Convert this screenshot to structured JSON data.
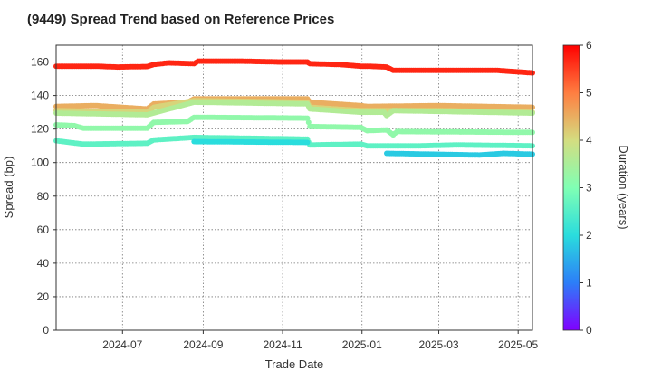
{
  "chart_data": {
    "type": "scatter",
    "title": "(9449)   Spread Trend based on Reference Prices",
    "xlabel": "Trade Date",
    "ylabel": "Spread (bp)",
    "x_range": [
      "2024-05-11",
      "2025-05-12"
    ],
    "ylim": [
      0,
      170
    ],
    "x_ticks": [
      {
        "date": "2024-07-01",
        "label": "2024-07"
      },
      {
        "date": "2024-09-01",
        "label": "2024-09"
      },
      {
        "date": "2024-11-01",
        "label": "2024-11"
      },
      {
        "date": "2025-01-01",
        "label": "2025-01"
      },
      {
        "date": "2025-03-01",
        "label": "2025-03"
      },
      {
        "date": "2025-05-01",
        "label": "2025-05"
      }
    ],
    "y_ticks": [
      0,
      20,
      40,
      60,
      80,
      100,
      120,
      140,
      160
    ],
    "grid": true,
    "colorbar": {
      "label": "Duration (years)",
      "range": [
        0,
        6
      ],
      "ticks": [
        0,
        1,
        2,
        3,
        4,
        5,
        6
      ],
      "colormap": "rainbow"
    },
    "series": [
      {
        "duration": 5.7,
        "points": [
          [
            "2024-05-11",
            157.5
          ],
          [
            "2024-06-10",
            157.5
          ],
          [
            "2024-06-27",
            157
          ],
          [
            "2024-07-20",
            157.3
          ],
          [
            "2024-07-25",
            158.5
          ],
          [
            "2024-08-05",
            159.5
          ],
          [
            "2024-08-25",
            159
          ],
          [
            "2024-08-28",
            160.5
          ],
          [
            "2024-09-30",
            160.5
          ],
          [
            "2024-10-31",
            160
          ],
          [
            "2024-11-20",
            160
          ],
          [
            "2024-11-22",
            159
          ],
          [
            "2024-12-15",
            158.5
          ],
          [
            "2024-12-31",
            157.5
          ],
          [
            "2025-01-05",
            157.5
          ],
          [
            "2025-01-20",
            157
          ],
          [
            "2025-01-25",
            155
          ],
          [
            "2025-03-15",
            155
          ],
          [
            "2025-04-15",
            155
          ],
          [
            "2025-05-12",
            153.5
          ]
        ]
      },
      {
        "duration": 4.5,
        "points": [
          [
            "2024-05-11",
            133.5
          ],
          [
            "2024-06-10",
            134
          ],
          [
            "2024-07-20",
            132
          ],
          [
            "2024-07-25",
            135
          ],
          [
            "2024-08-20",
            136
          ],
          [
            "2024-08-25",
            138
          ],
          [
            "2024-11-20",
            138
          ],
          [
            "2024-11-22",
            136
          ],
          [
            "2024-12-31",
            134
          ],
          [
            "2025-01-05",
            133.5
          ],
          [
            "2025-03-01",
            134
          ],
          [
            "2025-05-12",
            133
          ]
        ]
      },
      {
        "duration": 4.1,
        "points": [
          [
            "2024-05-11",
            131
          ],
          [
            "2024-07-20",
            130
          ],
          [
            "2024-07-25",
            133
          ],
          [
            "2024-08-25",
            137
          ],
          [
            "2024-11-20",
            136
          ],
          [
            "2024-11-22",
            133
          ],
          [
            "2024-12-31",
            131
          ],
          [
            "2025-01-05",
            131
          ],
          [
            "2025-03-01",
            131
          ],
          [
            "2025-05-12",
            130
          ]
        ]
      },
      {
        "duration": 3.6,
        "points": [
          [
            "2024-05-11",
            129.5
          ],
          [
            "2024-07-20",
            128.5
          ],
          [
            "2024-08-25",
            136
          ],
          [
            "2024-11-20",
            135
          ],
          [
            "2024-11-22",
            132
          ],
          [
            "2024-12-31",
            130
          ],
          [
            "2025-01-05",
            130
          ],
          [
            "2025-01-18",
            130
          ],
          [
            "2025-01-20",
            128
          ],
          [
            "2025-01-25",
            131
          ],
          [
            "2025-05-12",
            129.5
          ]
        ]
      },
      {
        "duration": 3.2,
        "points": [
          [
            "2024-05-11",
            122.5
          ],
          [
            "2024-05-25",
            122
          ],
          [
            "2024-06-01",
            120.5
          ],
          [
            "2024-07-20",
            120.5
          ],
          [
            "2024-07-25",
            124
          ],
          [
            "2024-08-20",
            124.5
          ],
          [
            "2024-08-25",
            127
          ],
          [
            "2024-11-20",
            126.5
          ],
          [
            "2024-11-22",
            121.5
          ],
          [
            "2024-12-31",
            121
          ],
          [
            "2025-01-05",
            119
          ],
          [
            "2025-01-20",
            119.5
          ],
          [
            "2025-01-25",
            116.5
          ],
          [
            "2025-01-28",
            118.5
          ],
          [
            "2025-05-12",
            118
          ]
        ]
      },
      {
        "duration": 2.6,
        "points": [
          [
            "2024-05-11",
            113
          ],
          [
            "2024-06-01",
            111
          ],
          [
            "2024-07-20",
            111.5
          ],
          [
            "2024-07-25",
            113.5
          ],
          [
            "2024-08-25",
            115
          ],
          [
            "2024-11-20",
            114
          ],
          [
            "2024-11-22",
            110.5
          ],
          [
            "2024-12-31",
            111
          ],
          [
            "2025-01-05",
            110
          ],
          [
            "2025-02-15",
            110
          ],
          [
            "2025-03-15",
            110.5
          ],
          [
            "2025-05-12",
            110
          ]
        ]
      },
      {
        "duration": 2.0,
        "points": [
          [
            "2024-08-25",
            112.5
          ],
          [
            "2024-11-20",
            112
          ]
        ]
      },
      {
        "duration": 1.8,
        "points": [
          [
            "2025-01-20",
            105.5
          ],
          [
            "2025-02-25",
            105
          ],
          [
            "2025-04-01",
            104.5
          ],
          [
            "2025-04-20",
            105.5
          ],
          [
            "2025-05-12",
            105
          ]
        ]
      }
    ]
  }
}
